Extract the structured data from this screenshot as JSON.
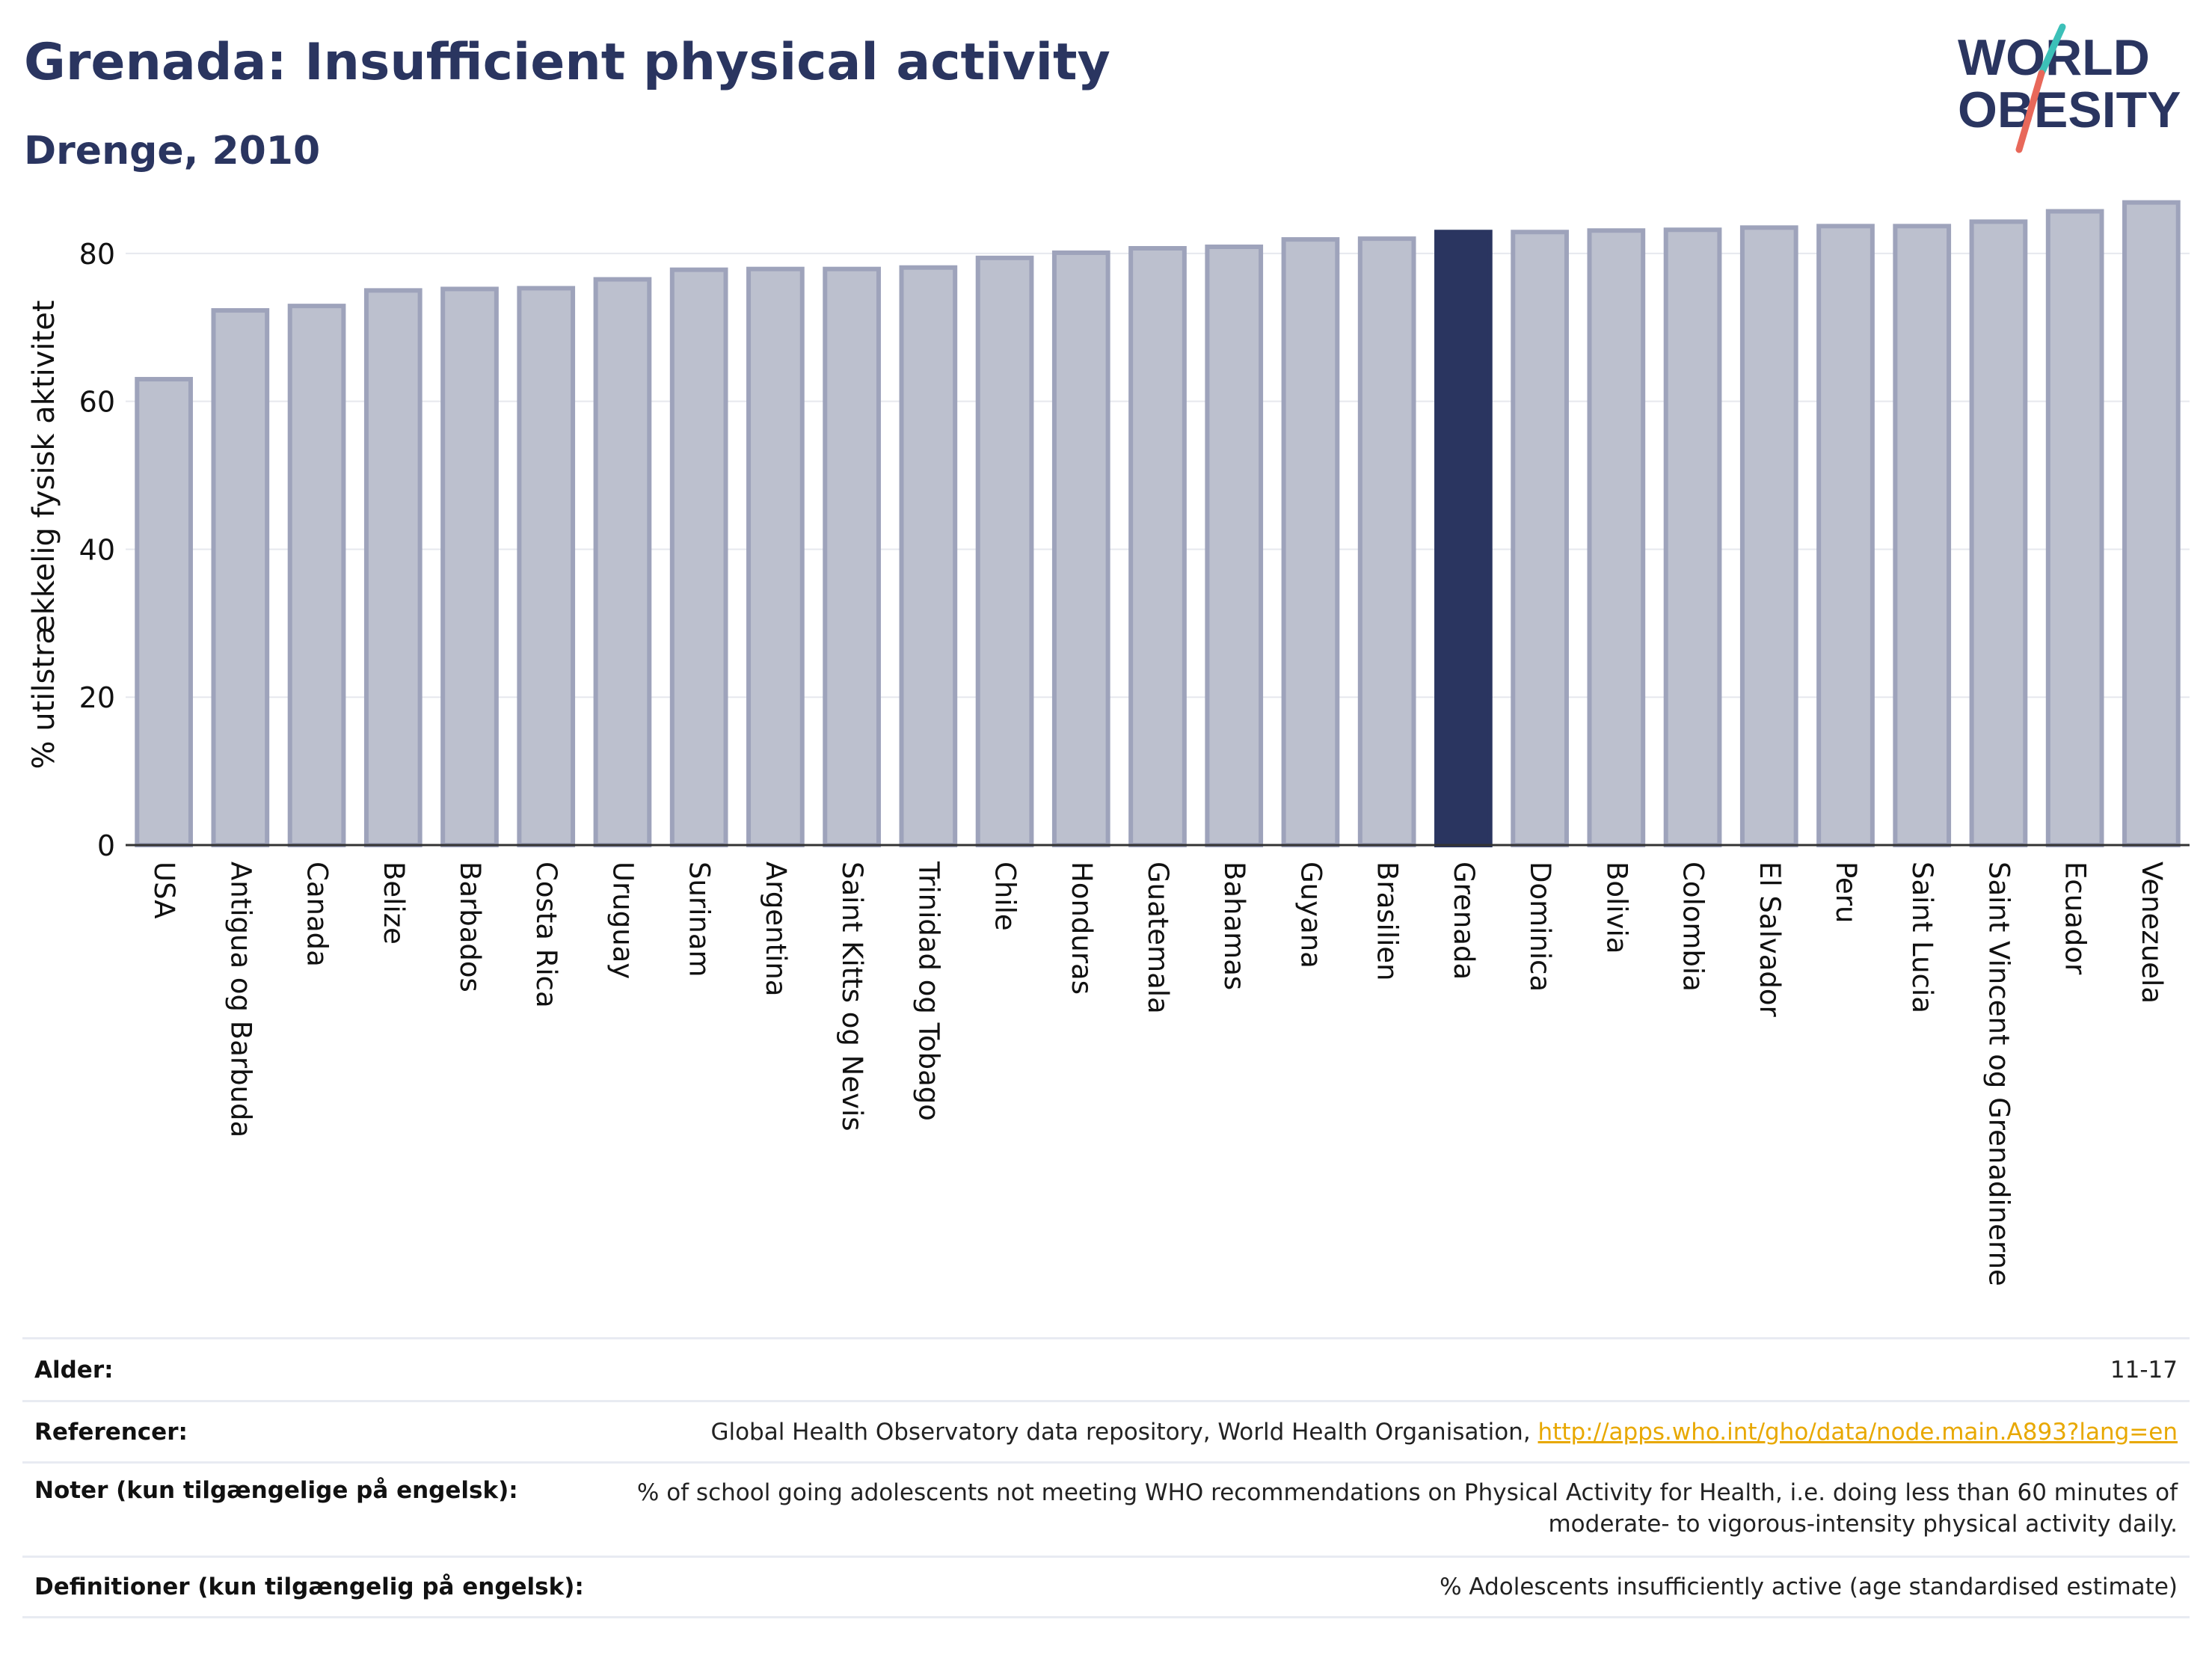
{
  "header": {
    "title": "Grenada: Insufficient physical activity",
    "subtitle": "Drenge, 2010"
  },
  "logo": {
    "line1": "WORLD",
    "line2": "OBESITY",
    "colors": {
      "text": "#2a3560",
      "slash_teal": "#3cc0b8",
      "slash_coral": "#e8685a"
    }
  },
  "colors": {
    "bar_fill": "#bcc0ce",
    "bar_stroke": "#9ea3bb",
    "highlight": "#2a3560",
    "grid": "#e6e8ee",
    "axis": "#333333"
  },
  "chart_data": {
    "type": "bar",
    "ylabel": "% utilstrækkelig fysisk aktivitet",
    "ylim": [
      0,
      90
    ],
    "yticks": [
      0,
      20,
      40,
      60,
      80
    ],
    "grid": true,
    "highlight": "Grenada",
    "categories": [
      "USA",
      "Antigua og Barbuda",
      "Canada",
      "Belize",
      "Barbados",
      "Costa Rica",
      "Uruguay",
      "Surinam",
      "Argentina",
      "Saint Kitts og Nevis",
      "Trinidad og Tobago",
      "Chile",
      "Honduras",
      "Guatemala",
      "Bahamas",
      "Guyana",
      "Brasilien",
      "Grenada",
      "Dominica",
      "Bolivia",
      "Colombia",
      "El Salvador",
      "Peru",
      "Saint Lucia",
      "Saint Vincent og Grenadinerne",
      "Ecuador",
      "Venezuela"
    ],
    "values": [
      63.3,
      72.6,
      73.2,
      75.3,
      75.5,
      75.6,
      76.8,
      78.1,
      78.2,
      78.2,
      78.4,
      79.7,
      80.4,
      81.0,
      81.2,
      82.2,
      82.3,
      83.2,
      83.2,
      83.4,
      83.5,
      83.8,
      84.0,
      84.0,
      84.6,
      86.0,
      87.2
    ]
  },
  "meta": {
    "age_label": "Alder:",
    "age_value": "11-17",
    "refs_label": "Referencer:",
    "refs_text": "Global Health Observatory data repository, World Health Organisation, ",
    "refs_link": "http://apps.who.int/gho/data/node.main.A893?lang=en",
    "notes_label": "Noter (kun tilgængelige på engelsk):",
    "notes_line1": "% of school going adolescents not meeting WHO recommendations on Physical Activity for Health, i.e. doing less than 60 minutes of",
    "notes_line2": "moderate- to vigorous-intensity physical activity daily.",
    "defs_label": "Definitioner (kun tilgængelig på engelsk):",
    "defs_value": "% Adolescents insufficiently active (age standardised estimate)"
  }
}
